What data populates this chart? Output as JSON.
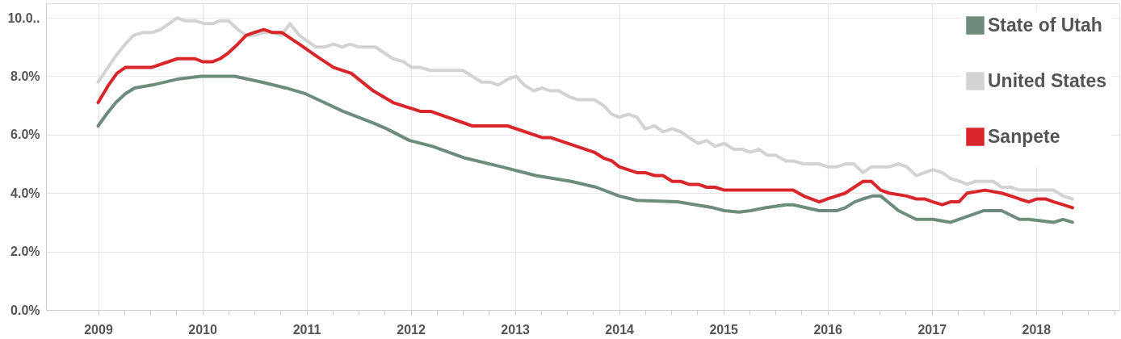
{
  "chart_data": {
    "type": "line",
    "xlim": [
      2008.5,
      2018.8
    ],
    "xticks": [
      2009,
      {
        "value": 2009.25,
        "label": null
      },
      {
        "value": 2009.5,
        "label": null
      },
      {
        "value": 2009.75,
        "label": null
      },
      2010,
      {
        "value": 2010.25,
        "label": null
      },
      {
        "value": 2010.5,
        "label": null
      },
      {
        "value": 2010.75,
        "label": null
      },
      2011,
      {
        "value": 2011.25,
        "label": null
      },
      {
        "value": 2011.5,
        "label": null
      },
      {
        "value": 2011.75,
        "label": null
      },
      2012,
      {
        "value": 2012.25,
        "label": null
      },
      {
        "value": 2012.5,
        "label": null
      },
      {
        "value": 2012.75,
        "label": null
      },
      2013,
      {
        "value": 2013.25,
        "label": null
      },
      {
        "value": 2013.5,
        "label": null
      },
      {
        "value": 2013.75,
        "label": null
      },
      2014,
      {
        "value": 2014.25,
        "label": null
      },
      {
        "value": 2014.5,
        "label": null
      },
      {
        "value": 2014.75,
        "label": null
      },
      2015,
      {
        "value": 2015.25,
        "label": null
      },
      {
        "value": 2015.5,
        "label": null
      },
      {
        "value": 2015.75,
        "label": null
      },
      2016,
      {
        "value": 2016.25,
        "label": null
      },
      {
        "value": 2016.5,
        "label": null
      },
      {
        "value": 2016.75,
        "label": null
      },
      2017,
      {
        "value": 2017.25,
        "label": null
      },
      {
        "value": 2017.5,
        "label": null
      },
      {
        "value": 2017.75,
        "label": null
      },
      2018,
      {
        "value": 2018.25,
        "label": null
      },
      {
        "value": 2018.5,
        "label": null
      },
      {
        "value": 2018.75,
        "label": null
      }
    ],
    "ylim": [
      0,
      10.5
    ],
    "yticks": [
      {
        "value": 0,
        "label": "0.0%"
      },
      {
        "value": 2,
        "label": "2.0%"
      },
      {
        "value": 4,
        "label": "4.0%"
      },
      {
        "value": 6,
        "label": "6.0%"
      },
      {
        "value": 8,
        "label": "8.0%"
      },
      {
        "value": 10,
        "label": "10.0.."
      }
    ],
    "grid": true,
    "legend": "top right",
    "marker": "none",
    "line_style": "solid",
    "series": [
      {
        "name": "State of Utah",
        "color": "#6e8c7e",
        "x": [
          2009.0,
          2009.08,
          2009.17,
          2009.26,
          2009.35,
          2009.52,
          2009.76,
          2009.99,
          2010.15,
          2010.31,
          2010.57,
          2010.8,
          2010.99,
          2011.17,
          2011.35,
          2011.64,
          2011.77,
          2011.99,
          2012.21,
          2012.52,
          2012.87,
          2013.2,
          2013.54,
          2013.78,
          2014.0,
          2014.17,
          2014.56,
          2014.9,
          2015.01,
          2015.15,
          2015.26,
          2015.41,
          2015.6,
          2015.67,
          2015.92,
          2016.09,
          2016.17,
          2016.26,
          2016.34,
          2016.43,
          2016.51,
          2016.68,
          2016.85,
          2017.01,
          2017.18,
          2017.34,
          2017.5,
          2017.67,
          2017.84,
          2017.93,
          2018.17,
          2018.26,
          2018.35
        ],
        "values": [
          6.3,
          6.7,
          7.1,
          7.4,
          7.6,
          7.7,
          7.9,
          8.0,
          8.0,
          8.0,
          7.8,
          7.6,
          7.4,
          7.1,
          6.8,
          6.4,
          6.2,
          5.8,
          5.6,
          5.2,
          4.9,
          4.6,
          4.4,
          4.2,
          3.9,
          3.75,
          3.7,
          3.5,
          3.4,
          3.35,
          3.4,
          3.5,
          3.6,
          3.6,
          3.4,
          3.4,
          3.5,
          3.7,
          3.8,
          3.9,
          3.9,
          3.4,
          3.1,
          3.1,
          3.0,
          3.2,
          3.4,
          3.4,
          3.1,
          3.1,
          3.0,
          3.1,
          3.0
        ]
      },
      {
        "name": "United States",
        "color": "#d3d3d3",
        "x": [
          2009.0,
          2009.17,
          2009.26,
          2009.34,
          2009.43,
          2009.52,
          2009.6,
          2009.76,
          2009.83,
          2009.93,
          2010.02,
          2010.1,
          2010.17,
          2010.25,
          2010.34,
          2010.42,
          2010.5,
          2010.59,
          2010.68,
          2010.76,
          2010.84,
          2010.93,
          2011.01,
          2011.09,
          2011.17,
          2011.26,
          2011.34,
          2011.42,
          2011.5,
          2011.56,
          2011.66,
          2011.83,
          2011.93,
          2012.01,
          2012.09,
          2012.19,
          2012.5,
          2012.68,
          2012.76,
          2012.84,
          2012.93,
          2013.01,
          2013.09,
          2013.18,
          2013.26,
          2013.34,
          2013.42,
          2013.52,
          2013.6,
          2013.76,
          2013.85,
          2013.93,
          2014.0,
          2014.09,
          2014.17,
          2014.25,
          2014.34,
          2014.42,
          2014.51,
          2014.59,
          2014.67,
          2014.76,
          2014.84,
          2014.92,
          2015.01,
          2015.1,
          2015.18,
          2015.26,
          2015.34,
          2015.42,
          2015.5,
          2015.6,
          2015.67,
          2015.77,
          2015.92,
          2016.0,
          2016.09,
          2016.17,
          2016.25,
          2016.34,
          2016.42,
          2016.59,
          2016.68,
          2016.76,
          2016.85,
          2016.93,
          2017.01,
          2017.1,
          2017.18,
          2017.27,
          2017.34,
          2017.42,
          2017.59,
          2017.67,
          2017.76,
          2017.84,
          2018.17,
          2018.26,
          2018.35
        ],
        "values": [
          7.8,
          8.7,
          9.1,
          9.4,
          9.5,
          9.5,
          9.6,
          10.0,
          9.9,
          9.9,
          9.8,
          9.8,
          9.9,
          9.9,
          9.6,
          9.4,
          9.4,
          9.5,
          9.5,
          9.4,
          9.8,
          9.4,
          9.2,
          9.0,
          9.0,
          9.1,
          9.0,
          9.1,
          9.0,
          9.0,
          9.0,
          8.6,
          8.5,
          8.3,
          8.3,
          8.2,
          8.2,
          7.8,
          7.8,
          7.7,
          7.9,
          8.0,
          7.7,
          7.5,
          7.6,
          7.5,
          7.5,
          7.3,
          7.2,
          7.2,
          7.0,
          6.7,
          6.6,
          6.7,
          6.6,
          6.2,
          6.3,
          6.1,
          6.2,
          6.1,
          5.9,
          5.7,
          5.8,
          5.6,
          5.7,
          5.5,
          5.5,
          5.4,
          5.5,
          5.3,
          5.3,
          5.1,
          5.1,
          5.0,
          5.0,
          4.9,
          4.9,
          5.0,
          5.0,
          4.7,
          4.9,
          4.9,
          5.0,
          4.9,
          4.6,
          4.7,
          4.8,
          4.7,
          4.5,
          4.4,
          4.3,
          4.4,
          4.4,
          4.2,
          4.2,
          4.1,
          4.1,
          3.9,
          3.8
        ]
      },
      {
        "name": "Sanpete",
        "color": "#d9262b",
        "x": [
          2009.0,
          2009.1,
          2009.18,
          2009.26,
          2009.51,
          2009.76,
          2009.93,
          2010.0,
          2010.1,
          2010.17,
          2010.25,
          2010.34,
          2010.42,
          2010.5,
          2010.59,
          2010.67,
          2010.76,
          2010.93,
          2011.09,
          2011.26,
          2011.43,
          2011.64,
          2011.83,
          2012.09,
          2012.19,
          2012.59,
          2012.93,
          2013.26,
          2013.34,
          2013.76,
          2013.85,
          2013.93,
          2014.0,
          2014.17,
          2014.25,
          2014.34,
          2014.42,
          2014.51,
          2014.59,
          2014.67,
          2014.76,
          2014.84,
          2014.92,
          2015.01,
          2015.67,
          2015.77,
          2015.92,
          2016.0,
          2016.17,
          2016.34,
          2016.42,
          2016.51,
          2016.59,
          2016.76,
          2016.85,
          2016.93,
          2017.01,
          2017.1,
          2017.18,
          2017.26,
          2017.34,
          2017.51,
          2017.67,
          2017.76,
          2017.84,
          2017.93,
          2018.01,
          2018.09,
          2018.17,
          2018.26,
          2018.35
        ],
        "values": [
          7.1,
          7.7,
          8.1,
          8.3,
          8.3,
          8.6,
          8.6,
          8.5,
          8.5,
          8.6,
          8.8,
          9.1,
          9.4,
          9.5,
          9.6,
          9.5,
          9.5,
          9.1,
          8.7,
          8.3,
          8.1,
          7.5,
          7.1,
          6.8,
          6.8,
          6.3,
          6.3,
          5.9,
          5.9,
          5.4,
          5.2,
          5.1,
          4.9,
          4.7,
          4.7,
          4.6,
          4.6,
          4.4,
          4.4,
          4.3,
          4.3,
          4.2,
          4.2,
          4.1,
          4.1,
          3.9,
          3.7,
          3.8,
          4.0,
          4.4,
          4.4,
          4.1,
          4.0,
          3.9,
          3.8,
          3.8,
          3.7,
          3.6,
          3.7,
          3.7,
          4.0,
          4.1,
          4.0,
          3.9,
          3.8,
          3.7,
          3.8,
          3.8,
          3.7,
          3.6,
          3.5
        ]
      }
    ]
  }
}
